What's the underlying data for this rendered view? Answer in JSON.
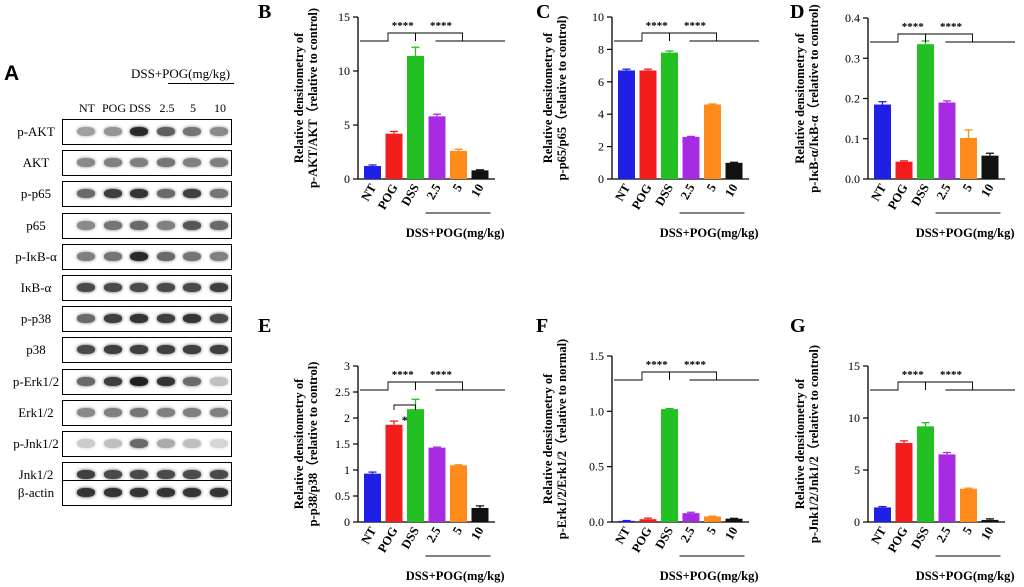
{
  "figure": {
    "panel_A": {
      "letter": "A",
      "header": "DSS+POG(mg/kg)",
      "lanes": [
        "NT",
        "POG",
        "DSS",
        "2.5",
        "5",
        "10"
      ],
      "rows": [
        {
          "label": "p-AKT",
          "intensity": [
            0.35,
            0.4,
            0.9,
            0.65,
            0.55,
            0.45
          ]
        },
        {
          "label": "AKT",
          "intensity": [
            0.45,
            0.5,
            0.5,
            0.55,
            0.5,
            0.5
          ]
        },
        {
          "label": "p-p65",
          "intensity": [
            0.6,
            0.8,
            0.85,
            0.6,
            0.8,
            0.55
          ]
        },
        {
          "label": "p65",
          "intensity": [
            0.45,
            0.55,
            0.6,
            0.5,
            0.7,
            0.6
          ]
        },
        {
          "label": "p-IκB-α",
          "intensity": [
            0.5,
            0.55,
            0.9,
            0.6,
            0.55,
            0.5
          ]
        },
        {
          "label": "IκB-α",
          "intensity": [
            0.75,
            0.75,
            0.75,
            0.75,
            0.75,
            0.8
          ]
        },
        {
          "label": "p-p38",
          "intensity": [
            0.6,
            0.8,
            0.85,
            0.8,
            0.85,
            0.75
          ]
        },
        {
          "label": "p38",
          "intensity": [
            0.75,
            0.8,
            0.8,
            0.8,
            0.8,
            0.8
          ]
        },
        {
          "label": "p-Erk1/2",
          "intensity": [
            0.6,
            0.8,
            0.95,
            0.85,
            0.6,
            0.2
          ]
        },
        {
          "label": "Erk1/2",
          "intensity": [
            0.45,
            0.5,
            0.55,
            0.5,
            0.5,
            0.5
          ]
        },
        {
          "label": "p-Jnk1/2",
          "intensity": [
            0.15,
            0.2,
            0.6,
            0.3,
            0.2,
            0.1
          ]
        },
        {
          "label": "Jnk1/2",
          "intensity": [
            0.8,
            0.75,
            0.75,
            0.75,
            0.75,
            0.75
          ]
        },
        {
          "label": "β-actin",
          "intensity": [
            0.85,
            0.85,
            0.85,
            0.85,
            0.85,
            0.85
          ]
        }
      ]
    },
    "colors": {
      "NT": "#1f1fe6",
      "POG": "#f21d1d",
      "DSS": "#22c022",
      "c2_5": "#a62be3",
      "c5": "#ff8c1a",
      "c10": "#111111"
    },
    "group_label": "DSS+POG(mg/kg)",
    "sig": "****",
    "sig_single": "*"
  },
  "chart_data": [
    {
      "type": "bar",
      "letter": "B",
      "ylabel_top": "Relative densitometry of",
      "ylabel": "p-AKT/AKT（relative to control)",
      "categories": [
        "NT",
        "POG",
        "DSS",
        "2.5",
        "5",
        "10"
      ],
      "values": [
        1.2,
        4.2,
        11.4,
        5.8,
        2.6,
        0.8
      ],
      "errors": [
        0.1,
        0.2,
        0.8,
        0.2,
        0.15,
        0.05
      ],
      "ylim": [
        0,
        15
      ],
      "ticks": [
        "0",
        "5",
        "10",
        "15"
      ]
    },
    {
      "type": "bar",
      "letter": "C",
      "ylabel_top": "Relative densitometry of",
      "ylabel": "p-p65/p65（relative to control)",
      "categories": [
        "NT",
        "POG",
        "DSS",
        "2.5",
        "5",
        "10"
      ],
      "values": [
        6.7,
        6.7,
        7.8,
        2.6,
        4.6,
        1.0
      ],
      "errors": [
        0.08,
        0.08,
        0.1,
        0.03,
        0.03,
        0.03
      ],
      "ylim": [
        0,
        10
      ],
      "ticks": [
        "0",
        "2",
        "4",
        "6",
        "8",
        "10"
      ]
    },
    {
      "type": "bar",
      "letter": "D",
      "ylabel_top": "Relative densitometry of",
      "ylabel": "p-IκB-α/IκB-α（relative to control)",
      "categories": [
        "NT",
        "POG",
        "DSS",
        "2.5",
        "5",
        "10"
      ],
      "values": [
        0.185,
        0.043,
        0.335,
        0.19,
        0.102,
        0.058
      ],
      "errors": [
        0.007,
        0.002,
        0.008,
        0.004,
        0.02,
        0.006
      ],
      "ylim": [
        0,
        0.4
      ],
      "ticks": [
        "0.0",
        "0.1",
        "0.2",
        "0.3",
        "0.4"
      ]
    },
    {
      "type": "bar",
      "letter": "E",
      "ylabel_top": "Relative densitometry of",
      "ylabel": "p-p38/p38（relative to control)",
      "categories": [
        "NT",
        "POG",
        "DSS",
        "2.5",
        "5",
        "10"
      ],
      "values": [
        0.93,
        1.87,
        2.17,
        1.43,
        1.09,
        0.27
      ],
      "errors": [
        0.03,
        0.07,
        0.19,
        0.01,
        0.01,
        0.04
      ],
      "ylim": [
        0,
        3
      ],
      "ticks": [
        "0",
        "0.5",
        "1",
        "1.5",
        "2",
        "2.5",
        "3"
      ]
    },
    {
      "type": "bar",
      "letter": "F",
      "ylabel_top": "Relative densitometry of",
      "ylabel": "p-Erk1/2/Erk1/2（relative to normal)",
      "categories": [
        "NT",
        "POG",
        "DSS",
        "2.5",
        "5",
        "10"
      ],
      "values": [
        0.01,
        0.025,
        1.02,
        0.08,
        0.05,
        0.03
      ],
      "errors": [
        0.003,
        0.01,
        0.005,
        0.008,
        0.003,
        0.003
      ],
      "ylim": [
        0,
        1.5
      ],
      "ticks": [
        "0.0",
        "0.5",
        "1.0",
        "1.5"
      ]
    },
    {
      "type": "bar",
      "letter": "G",
      "ylabel_top": "Relative densitometry of",
      "ylabel": "p-Jnk1/2/Jnk1/2（relative to control)",
      "categories": [
        "NT",
        "POG",
        "DSS",
        "2.5",
        "5",
        "10"
      ],
      "values": [
        1.4,
        7.6,
        9.2,
        6.5,
        3.2,
        0.2
      ],
      "errors": [
        0.08,
        0.2,
        0.35,
        0.18,
        0.05,
        0.1
      ],
      "ylim": [
        0,
        15
      ],
      "ticks": [
        "0",
        "5",
        "10",
        "15"
      ]
    }
  ]
}
